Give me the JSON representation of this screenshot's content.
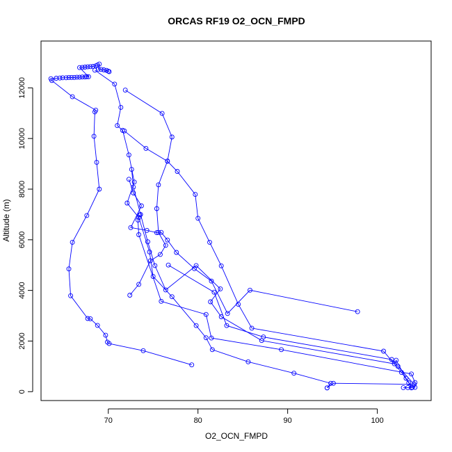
{
  "chart_data": {
    "type": "line",
    "title": "ORCAS RF19 O2_OCN_FMPD",
    "xlabel": "O2_OCN_FMPD",
    "ylabel": "Altitude (m)",
    "xlim": [
      62.5,
      106
    ],
    "ylim": [
      -350,
      13850
    ],
    "x_ticks": [
      70,
      80,
      90,
      100
    ],
    "y_ticks": [
      0,
      2000,
      4000,
      6000,
      8000,
      10000,
      12000
    ],
    "grid": false,
    "series": [
      {
        "color": "#0000ff",
        "marker": "open-circle",
        "points": [
          [
            79.3,
            1060
          ],
          [
            73.9,
            1620
          ],
          [
            70.1,
            1900
          ],
          [
            69.9,
            1960
          ],
          [
            69.7,
            2230
          ],
          [
            68.8,
            2620
          ],
          [
            68.0,
            2880
          ],
          [
            67.7,
            2890
          ],
          [
            65.8,
            3790
          ],
          [
            65.6,
            4850
          ],
          [
            66.0,
            5900
          ],
          [
            67.6,
            6960
          ],
          [
            69.0,
            8000
          ],
          [
            68.7,
            9060
          ],
          [
            68.4,
            10090
          ],
          [
            68.5,
            11050
          ],
          [
            68.6,
            11120
          ],
          [
            66.0,
            11650
          ],
          [
            63.7,
            12290
          ],
          [
            63.6,
            12360
          ],
          [
            64.2,
            12380
          ],
          [
            64.6,
            12390
          ],
          [
            64.9,
            12400
          ],
          [
            65.3,
            12400
          ],
          [
            65.6,
            12410
          ],
          [
            65.9,
            12410
          ],
          [
            66.2,
            12410
          ],
          [
            66.5,
            12420
          ],
          [
            66.8,
            12420
          ],
          [
            67.1,
            12430
          ],
          [
            67.4,
            12430
          ],
          [
            67.6,
            12440
          ],
          [
            67.8,
            12440
          ],
          [
            66.8,
            12800
          ],
          [
            67.1,
            12810
          ],
          [
            67.4,
            12820
          ],
          [
            67.7,
            12830
          ],
          [
            68.0,
            12840
          ],
          [
            68.3,
            12850
          ],
          [
            68.6,
            12870
          ],
          [
            68.8,
            12900
          ],
          [
            69.0,
            12940
          ],
          [
            68.9,
            12740
          ],
          [
            69.2,
            12730
          ],
          [
            69.5,
            12710
          ],
          [
            69.8,
            12690
          ],
          [
            70.0,
            12660
          ],
          [
            70.1,
            12640
          ]
        ]
      },
      {
        "color": "#0000ff",
        "marker": "open-circle",
        "points": [
          [
            68.5,
            12700
          ],
          [
            70.7,
            12150
          ],
          [
            71.4,
            11230
          ],
          [
            71.0,
            10510
          ],
          [
            71.6,
            10320
          ],
          [
            72.3,
            9350
          ],
          [
            72.9,
            8280
          ],
          [
            72.1,
            7450
          ],
          [
            73.4,
            6880
          ],
          [
            74.6,
            5520
          ],
          [
            75.0,
            4550
          ],
          [
            77.1,
            3750
          ],
          [
            79.8,
            2610
          ],
          [
            80.9,
            2130
          ],
          [
            81.6,
            1660
          ],
          [
            85.6,
            1180
          ],
          [
            90.7,
            730
          ],
          [
            94.8,
            330
          ],
          [
            94.4,
            150
          ]
        ]
      },
      {
        "color": "#0000ff",
        "marker": "open-circle",
        "points": [
          [
            71.9,
            11910
          ],
          [
            76.0,
            10990
          ],
          [
            77.1,
            10060
          ],
          [
            76.6,
            9110
          ],
          [
            75.6,
            8170
          ],
          [
            75.4,
            7230
          ],
          [
            75.6,
            6290
          ],
          [
            76.4,
            5780
          ],
          [
            75.8,
            5420
          ],
          [
            74.7,
            5170
          ],
          [
            73.4,
            4240
          ],
          [
            72.4,
            3810
          ]
        ]
      },
      {
        "color": "#0000ff",
        "marker": "open-circle",
        "points": [
          [
            71.8,
            10300
          ],
          [
            74.2,
            9610
          ],
          [
            76.6,
            9100
          ],
          [
            77.7,
            8700
          ],
          [
            79.7,
            7790
          ],
          [
            80.0,
            6850
          ],
          [
            81.3,
            5900
          ],
          [
            82.6,
            4970
          ],
          [
            84.5,
            3450
          ],
          [
            86.0,
            2510
          ],
          [
            100.7,
            1600
          ],
          [
            102.7,
            760
          ],
          [
            103.5,
            350
          ],
          [
            103.8,
            150
          ]
        ]
      },
      {
        "color": "#0000ff",
        "marker": "open-circle",
        "points": [
          [
            72.3,
            8390
          ],
          [
            72.8,
            7850
          ],
          [
            73.7,
            7340
          ],
          [
            72.5,
            6480
          ],
          [
            74.3,
            6370
          ],
          [
            75.4,
            6280
          ],
          [
            75.9,
            6290
          ],
          [
            76.6,
            5990
          ],
          [
            77.6,
            5500
          ],
          [
            79.6,
            4860
          ],
          [
            81.5,
            4370
          ],
          [
            83.3,
            3090
          ],
          [
            85.8,
            4010
          ],
          [
            97.8,
            3160
          ]
        ]
      },
      {
        "color": "#0000ff",
        "marker": "open-circle",
        "points": [
          [
            72.6,
            8780
          ],
          [
            72.8,
            8080
          ],
          [
            73.6,
            7000
          ],
          [
            74.4,
            5920
          ],
          [
            75.2,
            4980
          ],
          [
            76.4,
            4020
          ],
          [
            79.8,
            4980
          ],
          [
            82.5,
            4060
          ],
          [
            81.4,
            3550
          ],
          [
            82.6,
            2960
          ],
          [
            87.1,
            2020
          ],
          [
            101.9,
            1100
          ],
          [
            102.1,
            1240
          ],
          [
            103.2,
            530
          ],
          [
            103.9,
            170
          ]
        ]
      },
      {
        "color": "#0000ff",
        "marker": "open-circle",
        "points": [
          [
            73.5,
            6980
          ],
          [
            73.3,
            6780
          ],
          [
            73.4,
            6200
          ],
          [
            75.9,
            3570
          ],
          [
            80.9,
            3050
          ],
          [
            81.5,
            2120
          ],
          [
            89.3,
            1660
          ],
          [
            103.8,
            700
          ],
          [
            104.2,
            360
          ],
          [
            104.2,
            170
          ],
          [
            103.4,
            160
          ],
          [
            102.9,
            160
          ]
        ]
      },
      {
        "color": "#0000ff",
        "marker": "open-circle",
        "points": [
          [
            76.7,
            5000
          ],
          [
            81.8,
            3930
          ],
          [
            83.2,
            2610
          ],
          [
            87.3,
            2160
          ],
          [
            101.6,
            1270
          ],
          [
            102.3,
            1000
          ],
          [
            104.1,
            290
          ],
          [
            95.1,
            330
          ],
          [
            94.4,
            150
          ]
        ]
      }
    ]
  }
}
